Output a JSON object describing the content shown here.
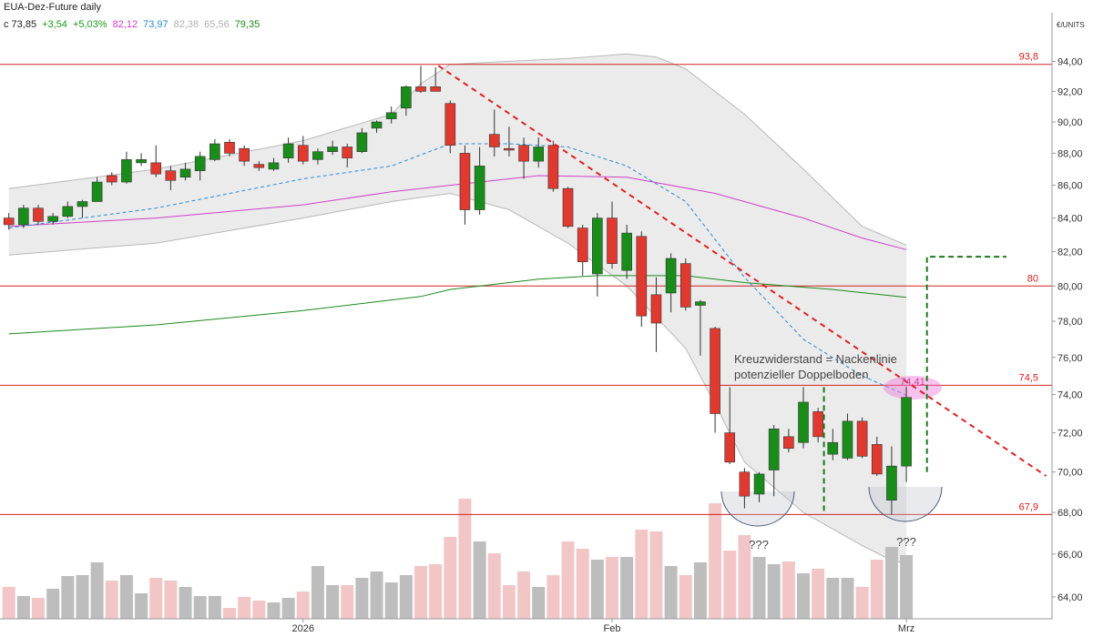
{
  "chart_data": {
    "type": "candlestick",
    "title": "EUA-Dez-Future daily",
    "legend_values": [
      {
        "text": "c 73,85",
        "color": "#222222"
      },
      {
        "text": "+3,54",
        "color": "#1a9a1a"
      },
      {
        "text": "+5,03%",
        "color": "#1a9a1a"
      },
      {
        "text": "82,12",
        "color": "#d040c8"
      },
      {
        "text": "73,97",
        "color": "#2a8ad8"
      },
      {
        "text": "82,38",
        "color": "#b0b0b0"
      },
      {
        "text": "65,56",
        "color": "#b0b0b0"
      },
      {
        "text": "79,35",
        "color": "#1a8a1a"
      }
    ],
    "y_unit": "€/UNITS",
    "log_scale": true,
    "ylim": [
      63,
      95.7
    ],
    "yticks": [
      {
        "value": 64,
        "label": "64,00"
      },
      {
        "value": 66,
        "label": "66,00"
      },
      {
        "value": 68,
        "label": "68,00"
      },
      {
        "value": 70,
        "label": "70,00"
      },
      {
        "value": 72,
        "label": "72,00"
      },
      {
        "value": 74,
        "label": "74,00"
      },
      {
        "value": 76,
        "label": "76,00"
      },
      {
        "value": 78,
        "label": "78,00"
      },
      {
        "value": 80,
        "label": "80,00"
      },
      {
        "value": 82,
        "label": "82,00"
      },
      {
        "value": 84,
        "label": "84,00"
      },
      {
        "value": 86,
        "label": "86,00"
      },
      {
        "value": 88,
        "label": "88,00"
      },
      {
        "value": 90,
        "label": "90,00"
      },
      {
        "value": 92,
        "label": "92,00"
      },
      {
        "value": 94,
        "label": "94,00"
      }
    ],
    "xlim": [
      -0.6,
      70.9
    ],
    "categories": [
      null,
      null,
      null,
      null,
      null,
      null,
      null,
      null,
      null,
      null,
      null,
      null,
      null,
      null,
      null,
      null,
      null,
      null,
      null,
      null,
      "2026",
      null,
      null,
      null,
      null,
      null,
      null,
      null,
      null,
      null,
      null,
      null,
      null,
      null,
      null,
      null,
      null,
      null,
      null,
      null,
      null,
      "Feb",
      null,
      null,
      null,
      null,
      null,
      null,
      null,
      null,
      null,
      null,
      null,
      null,
      null,
      null,
      null,
      null,
      null,
      null,
      null,
      "Mrz"
    ],
    "open": [
      84.0,
      83.6,
      84.6,
      83.8,
      84.1,
      84.7,
      85.0,
      86.6,
      86.2,
      87.4,
      87.4,
      86.9,
      86.5,
      86.9,
      87.6,
      88.7,
      88.3,
      87.3,
      87.0,
      87.7,
      88.5,
      87.6,
      88.1,
      88.4,
      88.1,
      89.6,
      90.2,
      90.9,
      92.3,
      92.3,
      91.2,
      88.0,
      84.5,
      89.2,
      88.3,
      88.5,
      87.5,
      88.5,
      85.8,
      83.4,
      80.7,
      84.0,
      80.9,
      82.9,
      79.5,
      79.6,
      81.3,
      78.9,
      77.6,
      72.0,
      70.0,
      68.9,
      70.1,
      71.8,
      71.5,
      73.1,
      70.9,
      70.7,
      72.6,
      71.4,
      68.6,
      70.3
    ],
    "high": [
      84.3,
      84.8,
      84.8,
      84.3,
      85.0,
      85.1,
      86.5,
      86.8,
      88.1,
      88.0,
      88.5,
      87.2,
      87.4,
      88.1,
      88.9,
      88.9,
      88.5,
      87.5,
      87.7,
      89.0,
      89.1,
      88.3,
      88.8,
      88.6,
      89.6,
      90.1,
      91.0,
      92.4,
      93.7,
      93.6,
      91.4,
      88.5,
      88.4,
      90.8,
      89.7,
      89.0,
      89.0,
      88.8,
      85.9,
      83.6,
      84.3,
      85.0,
      83.6,
      83.2,
      80.5,
      81.9,
      81.6,
      79.2,
      77.7,
      74.4,
      70.2,
      70.0,
      72.4,
      72.2,
      74.4,
      73.3,
      72.2,
      73.0,
      72.8,
      71.8,
      71.3,
      74.41
    ],
    "low": [
      83.3,
      83.4,
      83.6,
      83.6,
      84.0,
      84.0,
      85.0,
      86.0,
      86.1,
      87.2,
      86.5,
      85.7,
      86.3,
      86.3,
      87.5,
      87.8,
      87.2,
      86.9,
      86.9,
      87.4,
      87.3,
      87.3,
      87.9,
      87.1,
      88.0,
      89.3,
      89.9,
      90.4,
      91.9,
      92.0,
      88.0,
      83.6,
      84.2,
      87.8,
      87.8,
      86.4,
      87.1,
      85.6,
      83.4,
      80.6,
      79.4,
      81.0,
      80.4,
      77.7,
      76.3,
      78.5,
      78.6,
      76.1,
      72.0,
      70.4,
      68.2,
      68.5,
      68.8,
      71.0,
      71.2,
      71.5,
      70.6,
      70.6,
      70.7,
      69.8,
      67.9,
      69.5
    ],
    "close": [
      83.6,
      84.6,
      83.8,
      84.1,
      84.7,
      85.0,
      86.2,
      86.2,
      87.6,
      87.6,
      86.7,
      86.3,
      87.0,
      87.8,
      88.6,
      88.0,
      87.5,
      87.1,
      87.4,
      88.6,
      87.5,
      88.1,
      88.4,
      87.7,
      89.3,
      90.0,
      90.6,
      92.3,
      92.0,
      92.0,
      88.5,
      84.5,
      87.2,
      88.4,
      88.2,
      87.5,
      88.4,
      85.8,
      83.5,
      81.4,
      84.0,
      81.3,
      83.1,
      78.3,
      77.9,
      81.6,
      78.8,
      79.1,
      73.0,
      70.5,
      68.8,
      69.9,
      72.2,
      71.2,
      73.6,
      71.8,
      71.5,
      72.6,
      70.8,
      69.9,
      70.3,
      73.85
    ],
    "up_color": "#1a8c1a",
    "down_color": "#e0392f",
    "volume": {
      "values": [
        35,
        25,
        23,
        33,
        47,
        48,
        62,
        42,
        48,
        28,
        45,
        42,
        35,
        25,
        25,
        12,
        24,
        20,
        18,
        23,
        30,
        58,
        37,
        37,
        45,
        52,
        40,
        48,
        58,
        60,
        90,
        132,
        85,
        72,
        37,
        52,
        35,
        48,
        85,
        77,
        65,
        68,
        68,
        98,
        96,
        58,
        48,
        62,
        127,
        75,
        92,
        68,
        60,
        63,
        50,
        55,
        45,
        45,
        35,
        65,
        79,
        70
      ],
      "y2lim": [
        0,
        140
      ],
      "up_color": "#bdbdbd",
      "down_color": "#f2c6c6"
    },
    "band": {
      "color": "#ebebeb",
      "line_color": "#b8b8b8",
      "x": [
        0,
        10,
        20,
        26,
        28,
        30,
        34,
        38,
        42,
        44,
        46,
        50,
        54,
        58,
        61
      ],
      "upper": [
        85.8,
        87.0,
        88.8,
        90.5,
        92.5,
        93.8,
        94.0,
        94.2,
        94.5,
        94.3,
        93.5,
        90.5,
        87.0,
        83.5,
        82.38
      ],
      "lower_x": [
        0,
        10,
        20,
        26,
        30,
        34,
        38,
        42,
        46,
        48,
        50,
        54,
        58,
        60,
        61
      ],
      "lower": [
        81.8,
        82.5,
        84.0,
        85.0,
        85.5,
        84.5,
        82.5,
        80.0,
        76.5,
        73.5,
        70.5,
        68.0,
        66.4,
        65.7,
        65.56
      ]
    },
    "indicators": [
      {
        "color": "#1a8a1a",
        "dash": false,
        "x": [
          0,
          10,
          20,
          28,
          30,
          36,
          40,
          46,
          50,
          56,
          61
        ],
        "values": [
          77.3,
          77.8,
          78.6,
          79.4,
          79.8,
          80.4,
          80.6,
          80.6,
          80.2,
          79.8,
          79.35
        ]
      },
      {
        "color": "#d040c8",
        "dash": false,
        "x": [
          0,
          10,
          20,
          26,
          30,
          36,
          42,
          48,
          54,
          58,
          61
        ],
        "values": [
          83.5,
          84.0,
          84.8,
          85.6,
          86.0,
          86.6,
          86.5,
          85.5,
          84.0,
          82.8,
          82.12
        ]
      },
      {
        "color": "#2a8ad8",
        "dash": true,
        "x": [
          0,
          10,
          20,
          26,
          30,
          34,
          38,
          42,
          46,
          50,
          54,
          58,
          61
        ],
        "values": [
          83.4,
          84.6,
          86.4,
          87.2,
          88.6,
          88.6,
          88.4,
          87.2,
          85.0,
          80.5,
          77.0,
          75.0,
          73.97
        ]
      }
    ],
    "levels": [
      {
        "value": 93.8,
        "label": "93,8"
      },
      80,
      {
        "value": 74.5,
        "label": "74,5"
      },
      {
        "value": 67.9,
        "label": "67,9"
      }
    ],
    "level_color": "#d42020",
    "trendline": {
      "color": "#e02020",
      "x": [
        29.2,
        70.5
      ],
      "values": [
        93.7,
        69.8
      ]
    },
    "target_lines": {
      "color": "#1a7a1a",
      "lines": [
        {
          "x": [
            55.4,
            55.4
          ],
          "values": [
            74.4,
            67.9
          ]
        },
        {
          "x": [
            62.4,
            62.4,
            67.8
          ],
          "values": [
            70.0,
            81.7,
            81.7
          ]
        }
      ]
    },
    "annotations": [
      "Kreuzwiderstand = Nackenlinie",
      "potenzieller Doppelboden",
      "74,41",
      "???",
      "???"
    ]
  }
}
